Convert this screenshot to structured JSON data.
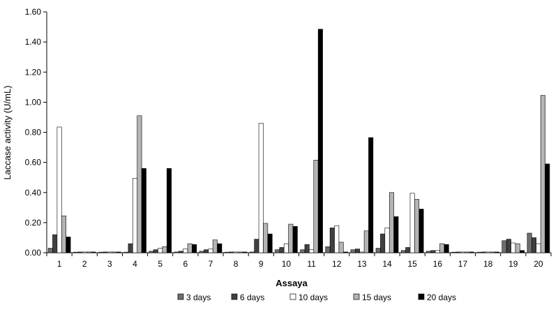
{
  "chart_data": {
    "type": "bar",
    "title": "",
    "xlabel": "Assaya",
    "ylabel": "Laccase activity (U/mL)",
    "ylim": [
      0,
      1.6
    ],
    "yticks": [
      "0.00",
      "0.20",
      "0.40",
      "0.60",
      "0.80",
      "1.00",
      "1.20",
      "1.40",
      "1.60"
    ],
    "categories": [
      "1",
      "2",
      "3",
      "4",
      "5",
      "6",
      "7",
      "8",
      "9",
      "10",
      "11",
      "12",
      "13",
      "14",
      "15",
      "16",
      "17",
      "18",
      "19",
      "20"
    ],
    "grid": false,
    "legend_position": "bottom",
    "series": [
      {
        "name": "3 days",
        "color": "#6e6e6e",
        "values": [
          0.03,
          0.004,
          0.004,
          0.004,
          0.01,
          0.005,
          0.01,
          0.004,
          0.005,
          0.02,
          0.02,
          0.04,
          0.02,
          0.03,
          0.015,
          0.01,
          0.004,
          0.004,
          0.08,
          0.13
        ]
      },
      {
        "name": "6 days",
        "color": "#404040",
        "values": [
          0.12,
          0.005,
          0.005,
          0.06,
          0.02,
          0.01,
          0.02,
          0.005,
          0.09,
          0.035,
          0.055,
          0.165,
          0.025,
          0.125,
          0.035,
          0.015,
          0.005,
          0.005,
          0.09,
          0.1
        ]
      },
      {
        "name": "10 days",
        "color": "#ffffff",
        "values": [
          0.835,
          0.005,
          0.005,
          0.495,
          0.03,
          0.025,
          0.025,
          0.005,
          0.86,
          0.06,
          0.02,
          0.18,
          0.005,
          0.165,
          0.395,
          0.015,
          0.005,
          0.005,
          0.065,
          0.06
        ]
      },
      {
        "name": "15 days",
        "color": "#b4b4b4",
        "values": [
          0.245,
          0.005,
          0.005,
          0.91,
          0.04,
          0.06,
          0.085,
          0.005,
          0.195,
          0.19,
          0.615,
          0.07,
          0.145,
          0.4,
          0.355,
          0.06,
          0.005,
          0.005,
          0.06,
          1.045
        ]
      },
      {
        "name": "20 days",
        "color": "#000000",
        "values": [
          0.105,
          0.005,
          0.005,
          0.56,
          0.56,
          0.055,
          0.06,
          0.005,
          0.125,
          0.175,
          1.485,
          0.005,
          0.765,
          0.24,
          0.29,
          0.055,
          0.005,
          0.005,
          0.015,
          0.59
        ]
      }
    ]
  }
}
